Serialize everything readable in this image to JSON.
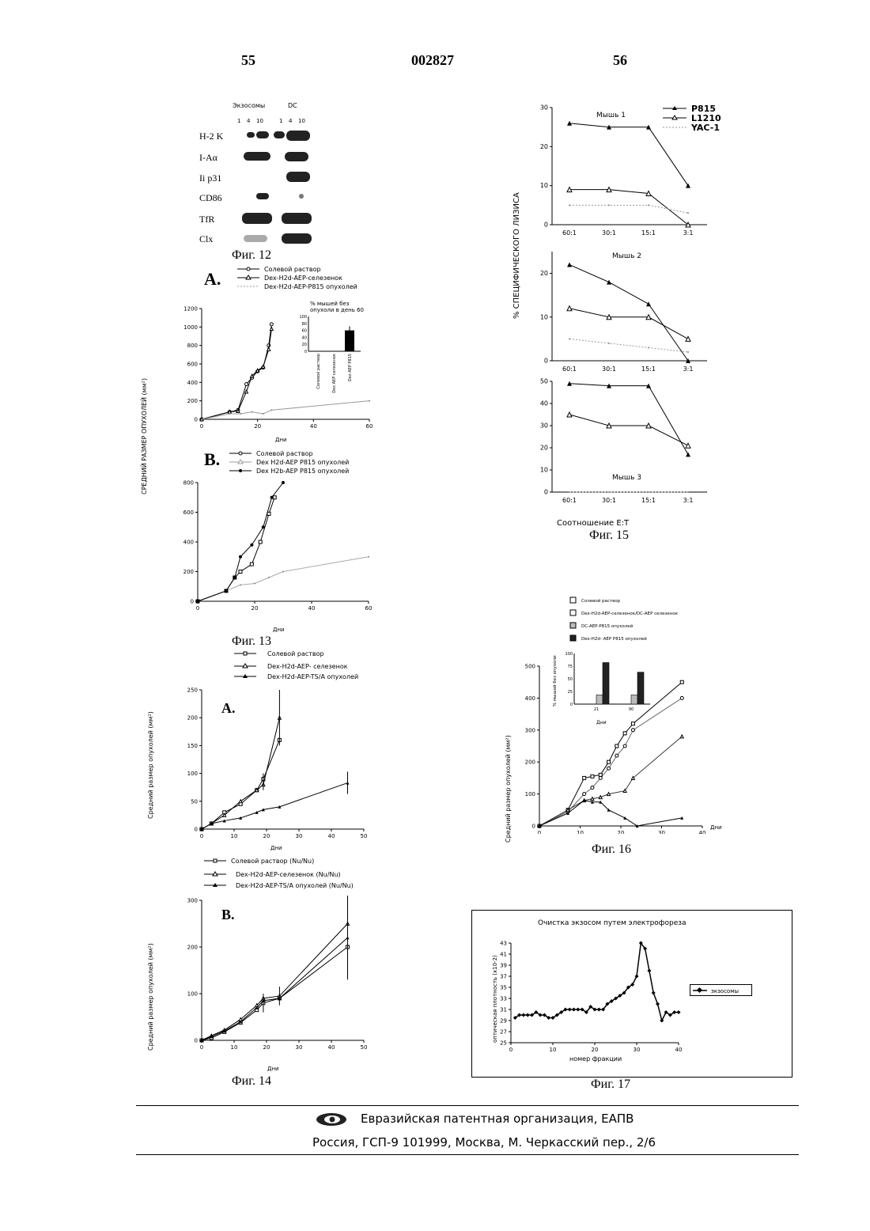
{
  "header": {
    "left_page": "55",
    "doc_number": "002827",
    "right_page": "56"
  },
  "fig12": {
    "caption": "Фиг. 12",
    "col_exosomes": "Экзосомы",
    "col_dc": "DC",
    "lanes": [
      "1",
      "4",
      "10",
      "1",
      "4",
      "10"
    ],
    "rows": [
      "H-2 K",
      "I-Aα",
      "Ii p31",
      "CD86",
      "TfR",
      "Clx"
    ]
  },
  "fig13": {
    "caption": "Фиг. 13",
    "shared_ylabel": "СРЕДНИЙ РАЗМЕР ОПУХОЛЕЙ (мм²)",
    "panelA": {
      "tag": "A.",
      "legend": [
        "Солевой раствор",
        "Dex-H2d-AEP-селезенок",
        "Dex-H2d-AEP-P815 опухолей"
      ],
      "xlabel": "Дни",
      "inset_title": "% мышей без опухоли в день 60",
      "inset_categories": [
        "Солевой раствор",
        "Dex AEP селезенок",
        "Dex AEP P815"
      ]
    },
    "panelB": {
      "tag": "B.",
      "legend": [
        "Солевой раствор",
        "Dex H2d-AEP P815 опухолей",
        "Dex H2b-AEP P815 опухолей"
      ],
      "xlabel": "Дни"
    }
  },
  "fig14": {
    "caption": "Фиг. 14",
    "panelA": {
      "tag": "A.",
      "legend": [
        "Солевой раствор",
        "Dex-H2d-AEP- селезенок",
        "Dex-H2d-AEP-TS/A опухолей"
      ],
      "ylabel": "Средний размер опухолей (мм²)",
      "xlabel": "Дни"
    },
    "panelB": {
      "tag": "B.",
      "legend": [
        "Солевой раствор (Nu/Nu)",
        "Dex-H2d-AEP-селезенок (Nu/Nu)",
        "Dex-H2d-AEP-TS/A опухолей (Nu/Nu)"
      ],
      "ylabel": "Средний размер опухолей (мм²)",
      "xlabel": "Дни"
    }
  },
  "fig15": {
    "caption": "Фиг. 15",
    "ylabel": "% СПЕЦИФИЧЕСКОГО ЛИЗИСА",
    "xlabel": "Соотношение E:T",
    "legend": [
      "P815",
      "L1210",
      "YAC-1"
    ],
    "mouse_labels": [
      "Мышь 1",
      "Мышь 2",
      "Мышь 3"
    ]
  },
  "fig16": {
    "caption": "Фиг. 16",
    "legend": [
      "Солевой раствор",
      "Dex-H2d-AEP-селезенок/DC-AEP селезенок",
      "DC-AEP-P815 опухолей",
      "Dex-H2d- AEP P815 опухолей"
    ],
    "ylabel": "Средний размер опухолей (мм²)",
    "xlabel": "Дни",
    "inset_ylabel": "% мышей без опухоли",
    "inset_xlabel": "Дни"
  },
  "fig17": {
    "caption": "Фиг. 17",
    "title": "Очистка экзосом путем электрофореза",
    "ylabel": "оптическая плотность (x10-2)",
    "xlabel": "номер фракции",
    "legend": "экзосомы"
  },
  "footer": {
    "org": "Евразийская патентная организация, ЕАПВ",
    "address": "Россия, ГСП-9 101999, Москва, М. Черкасский пер., 2/6"
  },
  "chart_data": [
    {
      "id": "fig13A",
      "type": "line",
      "title": "",
      "xlabel": "Дни",
      "ylabel": "СРЕДНИЙ РАЗМЕР ОПУХОЛЕЙ (мм²)",
      "xlim": [
        0,
        60
      ],
      "ylim": [
        0,
        1200
      ],
      "xticks": [
        0,
        20,
        40,
        60
      ],
      "yticks": [
        0,
        200,
        400,
        600,
        800,
        1000,
        1200
      ],
      "series": [
        {
          "name": "Солевой раствор",
          "x": [
            0,
            10,
            13,
            16,
            18,
            20,
            22,
            24,
            25
          ],
          "y": [
            0,
            80,
            100,
            380,
            450,
            520,
            560,
            800,
            1030
          ]
        },
        {
          "name": "Dex-H2d-AEP-селезенок",
          "x": [
            0,
            10,
            13,
            16,
            18,
            20,
            22,
            24,
            25
          ],
          "y": [
            0,
            80,
            90,
            300,
            470,
            530,
            570,
            760,
            980
          ]
        },
        {
          "name": "Dex-H2d-AEP-P815 опухолей",
          "x": [
            0,
            10,
            14,
            18,
            22,
            25,
            60
          ],
          "y": [
            0,
            60,
            60,
            80,
            60,
            100,
            200
          ]
        }
      ]
    },
    {
      "id": "fig13A_inset",
      "type": "bar",
      "title": "% мышей без опухоли в день 60",
      "categories": [
        "Солевой раствор",
        "Dex AEP селезенок",
        "Dex AEP P815"
      ],
      "values": [
        0,
        0,
        60
      ],
      "ylim": [
        0,
        100
      ],
      "yticks": [
        0,
        20,
        40,
        60,
        80,
        100
      ]
    },
    {
      "id": "fig13B",
      "type": "line",
      "xlabel": "Дни",
      "xlim": [
        0,
        60
      ],
      "ylim": [
        0,
        800
      ],
      "xticks": [
        0,
        20,
        40,
        60
      ],
      "yticks": [
        0,
        200,
        400,
        600,
        800
      ],
      "series": [
        {
          "name": "Солевой раствор",
          "x": [
            0,
            10,
            13,
            15,
            19,
            22,
            25,
            27
          ],
          "y": [
            0,
            70,
            160,
            200,
            250,
            400,
            590,
            700
          ]
        },
        {
          "name": "Dex H2d-AEP P815 опухолей",
          "x": [
            0,
            10,
            15,
            20,
            25,
            30,
            60
          ],
          "y": [
            0,
            70,
            110,
            120,
            160,
            200,
            300
          ]
        },
        {
          "name": "Dex H2b-AEP P815 опухолей",
          "x": [
            0,
            10,
            13,
            15,
            19,
            23,
            26,
            30
          ],
          "y": [
            0,
            70,
            160,
            300,
            380,
            500,
            700,
            800
          ]
        }
      ]
    },
    {
      "id": "fig14A",
      "type": "line",
      "xlabel": "Дни",
      "ylabel": "Средний размер опухолей (мм²)",
      "xlim": [
        0,
        50
      ],
      "ylim": [
        0,
        250
      ],
      "xticks": [
        0,
        10,
        20,
        30,
        40,
        50
      ],
      "yticks": [
        0,
        50,
        100,
        150,
        200,
        250
      ],
      "series": [
        {
          "name": "Солевой раствор",
          "x": [
            0,
            3,
            7,
            12,
            17,
            19,
            24
          ],
          "y": [
            0,
            10,
            30,
            45,
            70,
            90,
            160
          ]
        },
        {
          "name": "Dex-H2d-AEP- селезенок",
          "x": [
            0,
            3,
            7,
            12,
            17,
            19,
            24
          ],
          "y": [
            0,
            10,
            25,
            50,
            70,
            80,
            200
          ]
        },
        {
          "name": "Dex-H2d-AEP-TS/A опухолей",
          "x": [
            0,
            3,
            7,
            12,
            17,
            19,
            24,
            45
          ],
          "y": [
            0,
            10,
            15,
            20,
            30,
            35,
            40,
            83
          ]
        }
      ]
    },
    {
      "id": "fig14B",
      "type": "line",
      "xlabel": "Дни",
      "ylabel": "Средний размер опухолей (мм²)",
      "xlim": [
        0,
        50
      ],
      "ylim": [
        0,
        300
      ],
      "xticks": [
        0,
        10,
        20,
        30,
        40,
        50
      ],
      "yticks": [
        0,
        100,
        200,
        300
      ],
      "series": [
        {
          "name": "Солевой раствор (Nu/Nu)",
          "x": [
            0,
            3,
            7,
            12,
            17,
            19,
            24,
            45
          ],
          "y": [
            0,
            5,
            18,
            38,
            65,
            80,
            90,
            200
          ]
        },
        {
          "name": "Dex-H2d-AEP-селезенок (Nu/Nu)",
          "x": [
            0,
            3,
            7,
            12,
            17,
            19,
            24,
            45
          ],
          "y": [
            0,
            10,
            22,
            45,
            75,
            90,
            95,
            250
          ]
        },
        {
          "name": "Dex-H2d-AEP-TS/A опухолей (Nu/Nu)",
          "x": [
            0,
            3,
            7,
            12,
            17,
            19,
            24,
            45
          ],
          "y": [
            0,
            8,
            20,
            40,
            70,
            85,
            90,
            220
          ]
        }
      ]
    },
    {
      "id": "fig15_m1",
      "type": "line",
      "title": "Мышь 1",
      "categories": [
        "60:1",
        "30:1",
        "15:1",
        "3:1"
      ],
      "ylim": [
        0,
        30
      ],
      "yticks": [
        0,
        10,
        20,
        30
      ],
      "series": [
        {
          "name": "P815",
          "values": [
            26,
            25,
            25,
            10
          ]
        },
        {
          "name": "L1210",
          "values": [
            9,
            9,
            8,
            0
          ]
        },
        {
          "name": "YAC-1",
          "values": [
            5,
            5,
            5,
            3
          ]
        }
      ]
    },
    {
      "id": "fig15_m2",
      "type": "line",
      "title": "Мышь 2",
      "categories": [
        "60:1",
        "30:1",
        "15:1",
        "3:1"
      ],
      "ylim": [
        0,
        25
      ],
      "yticks": [
        0,
        10,
        20
      ],
      "series": [
        {
          "name": "P815",
          "values": [
            22,
            18,
            13,
            0
          ]
        },
        {
          "name": "L1210",
          "values": [
            12,
            10,
            10,
            5
          ]
        },
        {
          "name": "YAC-1",
          "values": [
            5,
            4,
            3,
            2
          ]
        }
      ]
    },
    {
      "id": "fig15_m3",
      "type": "line",
      "title": "Мышь 3",
      "categories": [
        "60:1",
        "30:1",
        "15:1",
        "3:1"
      ],
      "xlabel": "Соотношение E:T",
      "ylim": [
        0,
        50
      ],
      "yticks": [
        0,
        10,
        20,
        30,
        40,
        50
      ],
      "series": [
        {
          "name": "P815",
          "values": [
            49,
            48,
            48,
            17
          ]
        },
        {
          "name": "L1210",
          "values": [
            35,
            30,
            30,
            21
          ]
        },
        {
          "name": "YAC-1",
          "values": [
            0,
            0,
            0,
            0
          ]
        }
      ]
    },
    {
      "id": "fig16",
      "type": "line",
      "xlabel": "Дни",
      "ylabel": "Средний размер опухолей (мм²)",
      "xlim": [
        0,
        40
      ],
      "ylim": [
        0,
        500
      ],
      "xticks": [
        0,
        10,
        20,
        30,
        40
      ],
      "yticks": [
        0,
        100,
        200,
        300,
        400,
        500
      ],
      "series": [
        {
          "name": "Солевой раствор",
          "x": [
            0,
            7,
            11,
            13,
            15,
            17,
            19,
            21,
            23,
            35
          ],
          "y": [
            0,
            45,
            100,
            120,
            150,
            180,
            220,
            250,
            300,
            400
          ]
        },
        {
          "name": "Dex-H2d-AEP-селезенок/DC-AEP селезенок",
          "x": [
            0,
            7,
            11,
            13,
            15,
            17,
            19,
            21,
            23,
            35
          ],
          "y": [
            0,
            50,
            150,
            155,
            160,
            200,
            250,
            290,
            320,
            450
          ]
        },
        {
          "name": "DC-AEP-P815 опухолей",
          "x": [
            0,
            7,
            11,
            13,
            15,
            17,
            21,
            23,
            35
          ],
          "y": [
            0,
            50,
            80,
            85,
            90,
            100,
            110,
            150,
            280
          ]
        },
        {
          "name": "Dex-H2d- AEP P815 опухолей",
          "x": [
            0,
            7,
            11,
            13,
            15,
            17,
            21,
            24,
            35
          ],
          "y": [
            0,
            40,
            80,
            75,
            75,
            50,
            25,
            0,
            25
          ]
        }
      ]
    },
    {
      "id": "fig16_inset",
      "type": "bar",
      "ylabel": "% мышей без опухоли",
      "xlabel": "Дни",
      "categories": [
        "21",
        "90"
      ],
      "ylim": [
        0,
        100
      ],
      "yticks": [
        0,
        25,
        50,
        75,
        100
      ],
      "series": [
        {
          "name": "Солевой раствор",
          "values": [
            0,
            0
          ]
        },
        {
          "name": "Dex-H2d-AEP-селезенок/DC-AEP селезенок",
          "values": [
            0,
            0
          ]
        },
        {
          "name": "DC-AEP-P815 опухолей",
          "values": [
            18,
            18
          ]
        },
        {
          "name": "Dex-H2d- AEP P815 опухолей",
          "values": [
            82,
            63
          ]
        }
      ]
    },
    {
      "id": "fig17",
      "type": "line",
      "title": "Очистка экзосом путем электрофореза",
      "xlabel": "номер фракции",
      "ylabel": "оптическая плотность (x10-2)",
      "xlim": [
        0,
        40
      ],
      "ylim": [
        25,
        43
      ],
      "xticks": [
        0,
        10,
        20,
        30,
        40
      ],
      "yticks": [
        25,
        27,
        29,
        31,
        33,
        35,
        37,
        39,
        41,
        43
      ],
      "series": [
        {
          "name": "экзосомы",
          "x": [
            1,
            2,
            3,
            4,
            5,
            6,
            7,
            8,
            9,
            10,
            11,
            12,
            13,
            14,
            15,
            16,
            17,
            18,
            19,
            20,
            21,
            22,
            23,
            24,
            25,
            26,
            27,
            28,
            29,
            30,
            31,
            32,
            33,
            34,
            35,
            36,
            37,
            38,
            39,
            40
          ],
          "y": [
            29.5,
            30,
            30,
            30,
            30,
            30.5,
            30,
            30,
            29.5,
            29.5,
            30,
            30.5,
            31,
            31,
            31,
            31,
            31,
            30.5,
            31.5,
            31,
            31,
            31,
            32,
            32.5,
            33,
            33.5,
            34,
            35,
            35.5,
            37,
            43,
            42,
            38,
            34,
            32,
            29,
            30.5,
            30,
            30.5,
            30.5
          ]
        }
      ]
    }
  ]
}
